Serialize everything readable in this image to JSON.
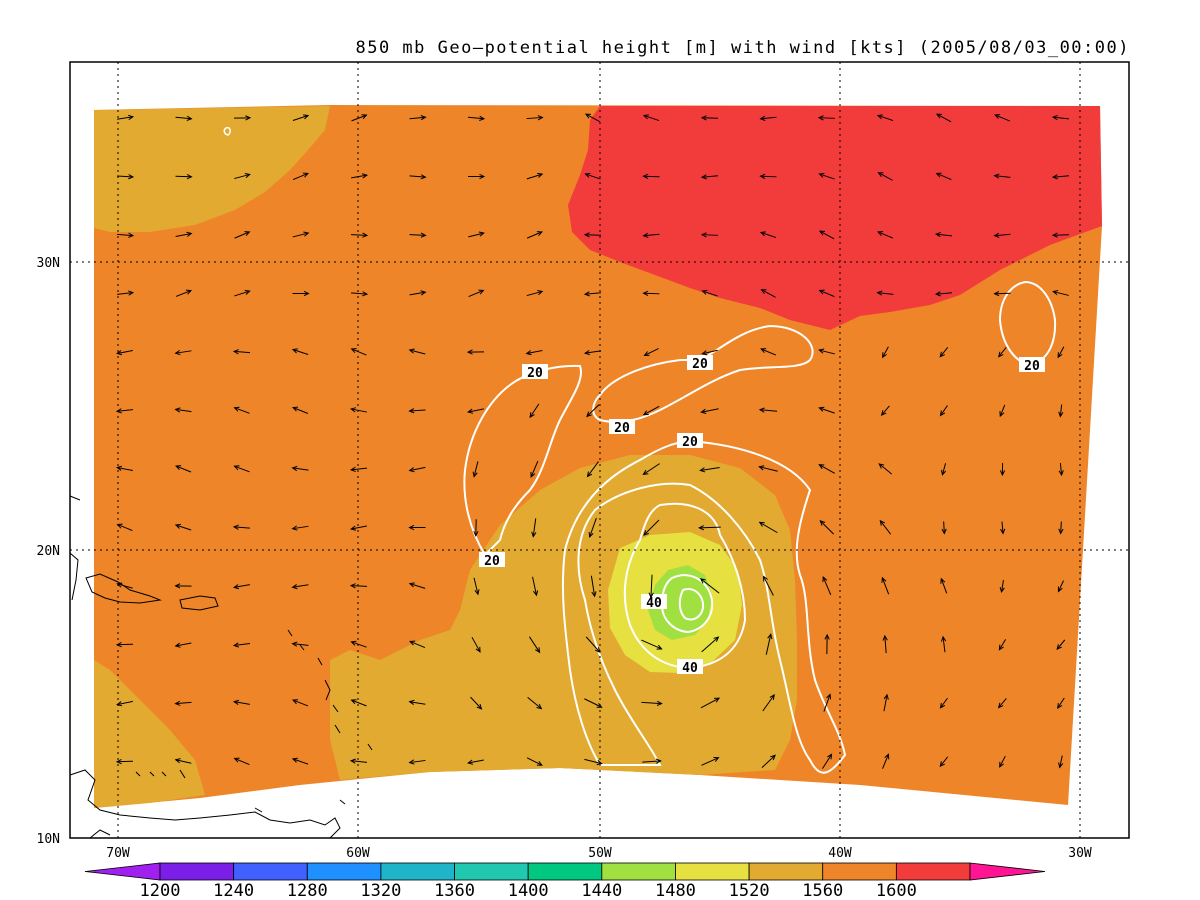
{
  "map": {
    "title": "850 mb Geo—potential height [m] with wind [kts] (2005/08/03_00:00)",
    "colors": {
      "c1200": "#a020f0",
      "c1240": "#4060ff",
      "c1280": "#1e90ff",
      "c1320": "#20b4c8",
      "c1360": "#20c8b0",
      "c1400": "#00c880",
      "c1440": "#a0e040",
      "c1480": "#e6e040",
      "c1520": "#e2aa30",
      "c1560": "#ee8528",
      "c1600": "#f23c3c",
      "c1640": "#ff1493",
      "contour": "#ffffff",
      "coast": "#000000"
    },
    "lon_labels": [
      "70W",
      "60W",
      "50W",
      "40W",
      "30W"
    ],
    "lat_labels": [
      "30N",
      "20N",
      "10N"
    ],
    "contour_labels": [
      "20",
      "20",
      "20",
      "20",
      "20",
      "20",
      "40",
      "40"
    ],
    "legend": {
      "labels": [
        "1200",
        "1240",
        "1280",
        "1320",
        "1360",
        "1400",
        "1440",
        "1480",
        "1520",
        "1560",
        "1600"
      ],
      "colors": [
        "#a020f0",
        "#7a1ee8",
        "#4060ff",
        "#1e90ff",
        "#20b4c8",
        "#20c8b0",
        "#00c880",
        "#a0e040",
        "#e6e040",
        "#e2aa30",
        "#ee8528",
        "#f23c3c",
        "#ff1493"
      ]
    }
  }
}
